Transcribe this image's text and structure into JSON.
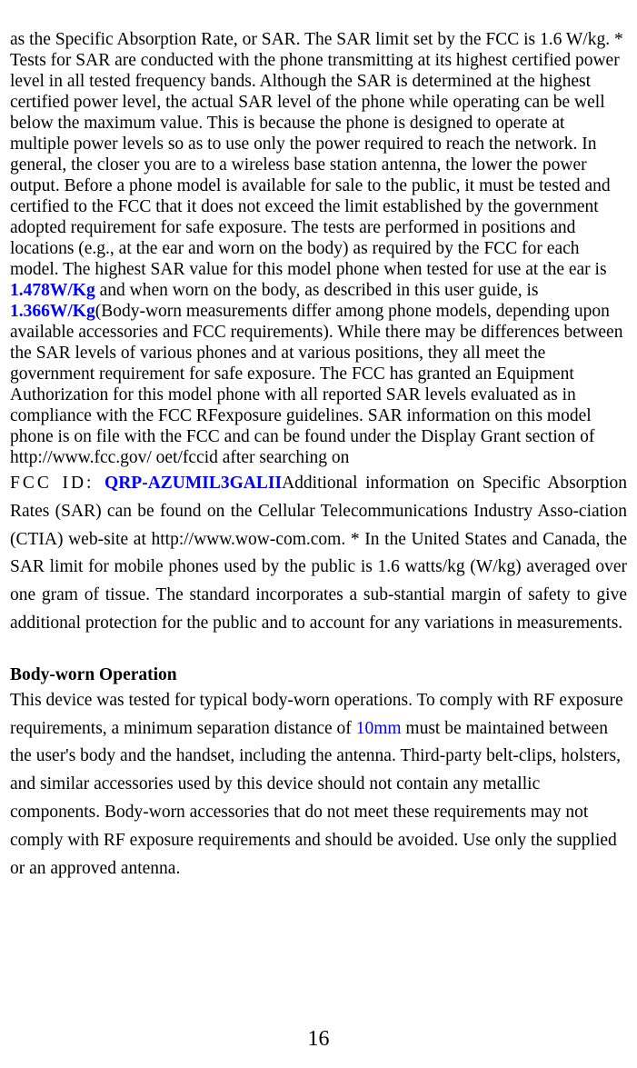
{
  "para1_pre": "as the Specific Absorption Rate, or SAR. The SAR limit set by the FCC is 1.6 W/kg. * Tests for SAR are conducted with the phone transmitting at its highest certified power level in all tested frequency bands. Although the SAR is determined at the highest certified power level, the actual SAR level of the phone while operating can be well below the maximum value. This is because the phone is designed to operate at multiple power levels so as to use only the power required to reach the network. In general, the closer you are to a wireless base station antenna, the lower the power output. Before a phone model is available for sale to the public, it must be tested and certified to the FCC that it does not exceed the limit established by the government adopted requirement for safe exposure. The tests are performed in positions and locations (e.g., at the ear and worn on the body) as required by the FCC for each model. The highest SAR value for this model phone when tested for use at the ear is ",
  "sar_ear": "1.478W/Kg",
  "para1_mid1": " and when worn on the body, as described in this user guide, is ",
  "sar_body": "1.366W/Kg",
  "para1_post1": "(Body-worn measurements differ among phone models, depending upon available accessories and FCC requirements). While there may be differences between the SAR levels of various phones and at various positions, they all meet the government requirement for safe exposure. The FCC has granted an Equipment Authorization for this model phone with all reported SAR levels evaluated as in compliance with the FCC RFexposure guidelines. SAR information on this model phone is on file with the FCC and can be found under the Display Grant section of http://www.fcc.gov/ oet/fccid after searching on",
  "fcc_id_label": "FCC ID: ",
  "fcc_id_value": "QRP-AZUMIL3GALII",
  "para2_post": "Additional information on Specific Absorption Rates (SAR) can be found on the Cellular Telecommunications Industry Asso-ciation (CTIA) web-site at http://www.wow-com.com. * In the United States and Canada, the SAR limit for mobile phones used by the public is 1.6 watts/kg (W/kg) averaged over one gram of tissue. The standard incorporates a sub-stantial margin of safety to give additional protection for the public and to account for any variations in measurements.",
  "heading": "Body-worn Operation",
  "para3_pre": "This device was tested for typical body-worn operations. To comply with RF exposure requirements, a minimum separation distance of ",
  "distance": "10mm",
  "para3_post": " must be maintained between the user's body and the handset, including the antenna. Third-party belt-clips, holsters, and similar accessories used by this device should not contain any metallic components. Body-worn accessories that do not meet these requirements may not comply with RF exposure requirements and should be avoided. Use only the supplied or an approved antenna.",
  "page_number": "16",
  "colors": {
    "text": "#000000",
    "highlight": "#0000ff",
    "background": "#ffffff"
  }
}
